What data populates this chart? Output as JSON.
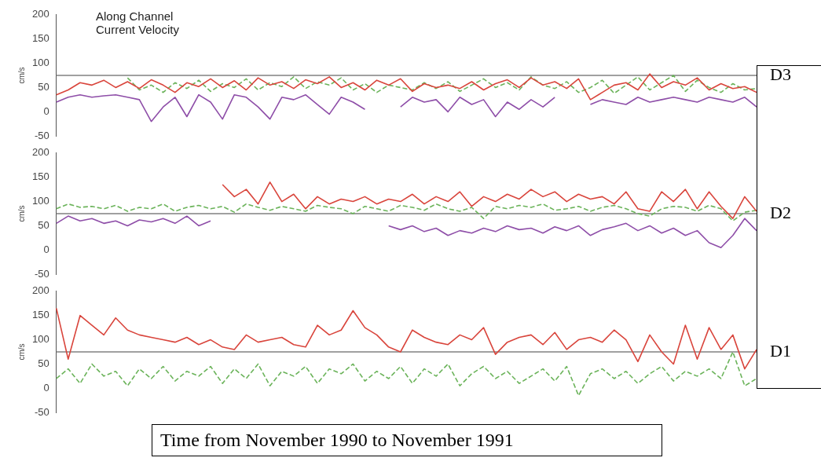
{
  "chart_data": [
    {
      "type": "line",
      "title": "Along Channel Current Velocity",
      "ylabel": "cm/s",
      "annotations": [
        "D3"
      ],
      "categories": [
        null,
        null,
        null,
        null,
        null,
        null,
        null,
        null,
        null,
        null,
        null,
        null,
        null,
        null,
        null,
        null,
        null,
        null,
        null,
        null,
        null,
        null,
        null,
        null,
        null,
        null,
        null,
        null,
        null,
        null,
        null,
        null,
        null,
        null,
        null,
        null,
        null,
        null,
        null,
        null,
        null,
        null,
        null,
        null,
        null,
        null,
        null,
        null,
        null,
        null,
        null,
        null,
        null,
        null,
        null,
        null,
        null,
        null,
        null,
        null
      ],
      "ylim": [
        -50,
        200
      ],
      "yticks": [
        -50,
        0,
        50,
        100,
        150,
        200
      ],
      "tick_labels": "y",
      "ref_lines": [
        {
          "axis": "y",
          "value": 75,
          "color": "#808080"
        }
      ],
      "series": [
        {
          "color": "#d9453c",
          "values": [
            35,
            45,
            60,
            55,
            65,
            50,
            62,
            48,
            66,
            55,
            40,
            60,
            52,
            68,
            50,
            64,
            45,
            70,
            55,
            62,
            48,
            66,
            58,
            72,
            50,
            60,
            45,
            65,
            55,
            68,
            42,
            58,
            50,
            55,
            48,
            62,
            45,
            58,
            66,
            50,
            70,
            55,
            62,
            48,
            68,
            25,
            40,
            55,
            60,
            45,
            78,
            50,
            62,
            55,
            70,
            45,
            58,
            48,
            52,
            40
          ]
        },
        {
          "color": "#6bb35a",
          "line_style": "dashed",
          "values": [
            null,
            null,
            null,
            null,
            null,
            null,
            70,
            45,
            55,
            40,
            60,
            48,
            65,
            42,
            58,
            50,
            68,
            45,
            60,
            52,
            72,
            48,
            62,
            55,
            70,
            45,
            58,
            40,
            55,
            50,
            45,
            60,
            48,
            62,
            42,
            55,
            68,
            50,
            60,
            45,
            72,
            55,
            48,
            62,
            40,
            50,
            65,
            38,
            55,
            72,
            45,
            60,
            75,
            42,
            65,
            50,
            40,
            58,
            45,
            48
          ]
        },
        {
          "color": "#8e4ea8",
          "values": [
            20,
            30,
            35,
            30,
            33,
            35,
            30,
            25,
            -20,
            10,
            30,
            -10,
            35,
            20,
            -15,
            35,
            30,
            10,
            -15,
            30,
            25,
            35,
            15,
            -5,
            30,
            20,
            5,
            null,
            null,
            10,
            30,
            20,
            25,
            0,
            30,
            15,
            25,
            -10,
            20,
            5,
            25,
            10,
            30,
            null,
            null,
            15,
            25,
            20,
            15,
            30,
            20,
            25,
            30,
            25,
            20,
            30,
            25,
            20,
            30,
            10
          ]
        }
      ]
    },
    {
      "type": "line",
      "ylabel": "cm/s",
      "annotations": [
        "D2"
      ],
      "categories": [
        null,
        null,
        null,
        null,
        null,
        null,
        null,
        null,
        null,
        null,
        null,
        null,
        null,
        null,
        null,
        null,
        null,
        null,
        null,
        null,
        null,
        null,
        null,
        null,
        null,
        null,
        null,
        null,
        null,
        null,
        null,
        null,
        null,
        null,
        null,
        null,
        null,
        null,
        null,
        null,
        null,
        null,
        null,
        null,
        null,
        null,
        null,
        null,
        null,
        null,
        null,
        null,
        null,
        null,
        null,
        null,
        null,
        null,
        null,
        null
      ],
      "ylim": [
        -50,
        200
      ],
      "yticks": [
        -50,
        0,
        50,
        100,
        150,
        200
      ],
      "tick_labels": "y",
      "ref_lines": [
        {
          "axis": "y",
          "value": 75,
          "color": "#808080"
        }
      ],
      "series": [
        {
          "color": "#d9453c",
          "values": [
            null,
            null,
            null,
            null,
            null,
            null,
            null,
            null,
            null,
            null,
            null,
            null,
            null,
            null,
            135,
            110,
            125,
            95,
            140,
            100,
            115,
            85,
            110,
            95,
            105,
            100,
            110,
            95,
            105,
            100,
            115,
            95,
            110,
            100,
            120,
            90,
            110,
            100,
            115,
            105,
            125,
            110,
            120,
            100,
            115,
            105,
            110,
            95,
            120,
            85,
            80,
            120,
            100,
            125,
            85,
            120,
            90,
            65,
            110,
            80
          ]
        },
        {
          "color": "#6bb35a",
          "line_style": "dashed",
          "values": [
            85,
            95,
            88,
            90,
            85,
            92,
            80,
            88,
            85,
            95,
            80,
            88,
            92,
            85,
            90,
            78,
            95,
            88,
            82,
            90,
            85,
            80,
            92,
            88,
            85,
            75,
            90,
            85,
            80,
            92,
            88,
            82,
            95,
            85,
            80,
            88,
            65,
            90,
            85,
            92,
            88,
            95,
            82,
            85,
            90,
            80,
            88,
            92,
            85,
            75,
            70,
            85,
            90,
            88,
            80,
            92,
            85,
            60,
            78,
            82
          ]
        },
        {
          "color": "#8e4ea8",
          "values": [
            55,
            70,
            60,
            65,
            55,
            60,
            50,
            62,
            58,
            65,
            55,
            70,
            50,
            60,
            null,
            null,
            null,
            null,
            null,
            null,
            null,
            null,
            null,
            null,
            null,
            null,
            null,
            null,
            50,
            42,
            50,
            38,
            45,
            30,
            40,
            35,
            45,
            38,
            50,
            42,
            45,
            35,
            48,
            40,
            50,
            30,
            42,
            48,
            55,
            40,
            50,
            35,
            45,
            30,
            40,
            15,
            5,
            30,
            65,
            40
          ]
        }
      ]
    },
    {
      "type": "line",
      "ylabel": "cm/s",
      "xlabel": "Time from November 1990 to November 1991",
      "annotations": [
        "D1"
      ],
      "categories": [
        null,
        null,
        null,
        null,
        null,
        null,
        null,
        null,
        null,
        null,
        null,
        null,
        null,
        null,
        null,
        null,
        null,
        null,
        null,
        null,
        null,
        null,
        null,
        null,
        null,
        null,
        null,
        null,
        null,
        null,
        null,
        null,
        null,
        null,
        null,
        null,
        null,
        null,
        null,
        null,
        null,
        null,
        null,
        null,
        null,
        null,
        null,
        null,
        null,
        null,
        null,
        null,
        null,
        null,
        null,
        null,
        null,
        null,
        null,
        null
      ],
      "ylim": [
        -50,
        200
      ],
      "yticks": [
        -50,
        0,
        50,
        100,
        150,
        200
      ],
      "tick_labels": "y",
      "ref_lines": [
        {
          "axis": "y",
          "value": 75,
          "color": "#808080"
        }
      ],
      "series": [
        {
          "color": "#d9453c",
          "values": [
            165,
            60,
            150,
            130,
            110,
            145,
            120,
            110,
            105,
            100,
            95,
            105,
            90,
            100,
            85,
            80,
            110,
            95,
            100,
            105,
            90,
            85,
            130,
            110,
            120,
            160,
            125,
            110,
            85,
            75,
            120,
            105,
            95,
            90,
            110,
            100,
            125,
            70,
            95,
            105,
            110,
            90,
            115,
            80,
            100,
            105,
            95,
            120,
            100,
            55,
            110,
            75,
            50,
            130,
            60,
            125,
            80,
            110,
            40,
            80
          ]
        },
        {
          "color": "#6bb35a",
          "line_style": "dashed",
          "values": [
            20,
            40,
            10,
            50,
            25,
            35,
            5,
            40,
            20,
            45,
            15,
            35,
            25,
            45,
            10,
            40,
            20,
            50,
            5,
            35,
            25,
            45,
            10,
            40,
            30,
            50,
            15,
            35,
            20,
            45,
            10,
            40,
            25,
            50,
            5,
            30,
            45,
            20,
            35,
            10,
            25,
            40,
            15,
            45,
            -15,
            30,
            40,
            20,
            35,
            10,
            30,
            45,
            15,
            35,
            25,
            40,
            20,
            75,
            5,
            20
          ]
        }
      ]
    }
  ]
}
